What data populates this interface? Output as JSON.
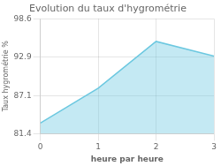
{
  "chart_data": {
    "type": "area",
    "title": "Evolution du taux d'hygrométrie",
    "xlabel": "heure par heure",
    "ylabel": "Taux hygrométrie %",
    "x": [
      0,
      1,
      2,
      3
    ],
    "values": [
      83.0,
      88.2,
      95.2,
      93.0
    ],
    "color": "#6cc8e0",
    "xlim": [
      0,
      3
    ],
    "xticks": [
      0,
      1,
      2,
      3
    ],
    "ylim": [
      81.4,
      98.6
    ],
    "yticks": [
      81.4,
      87.1,
      92.9,
      98.6
    ],
    "grid": true
  }
}
